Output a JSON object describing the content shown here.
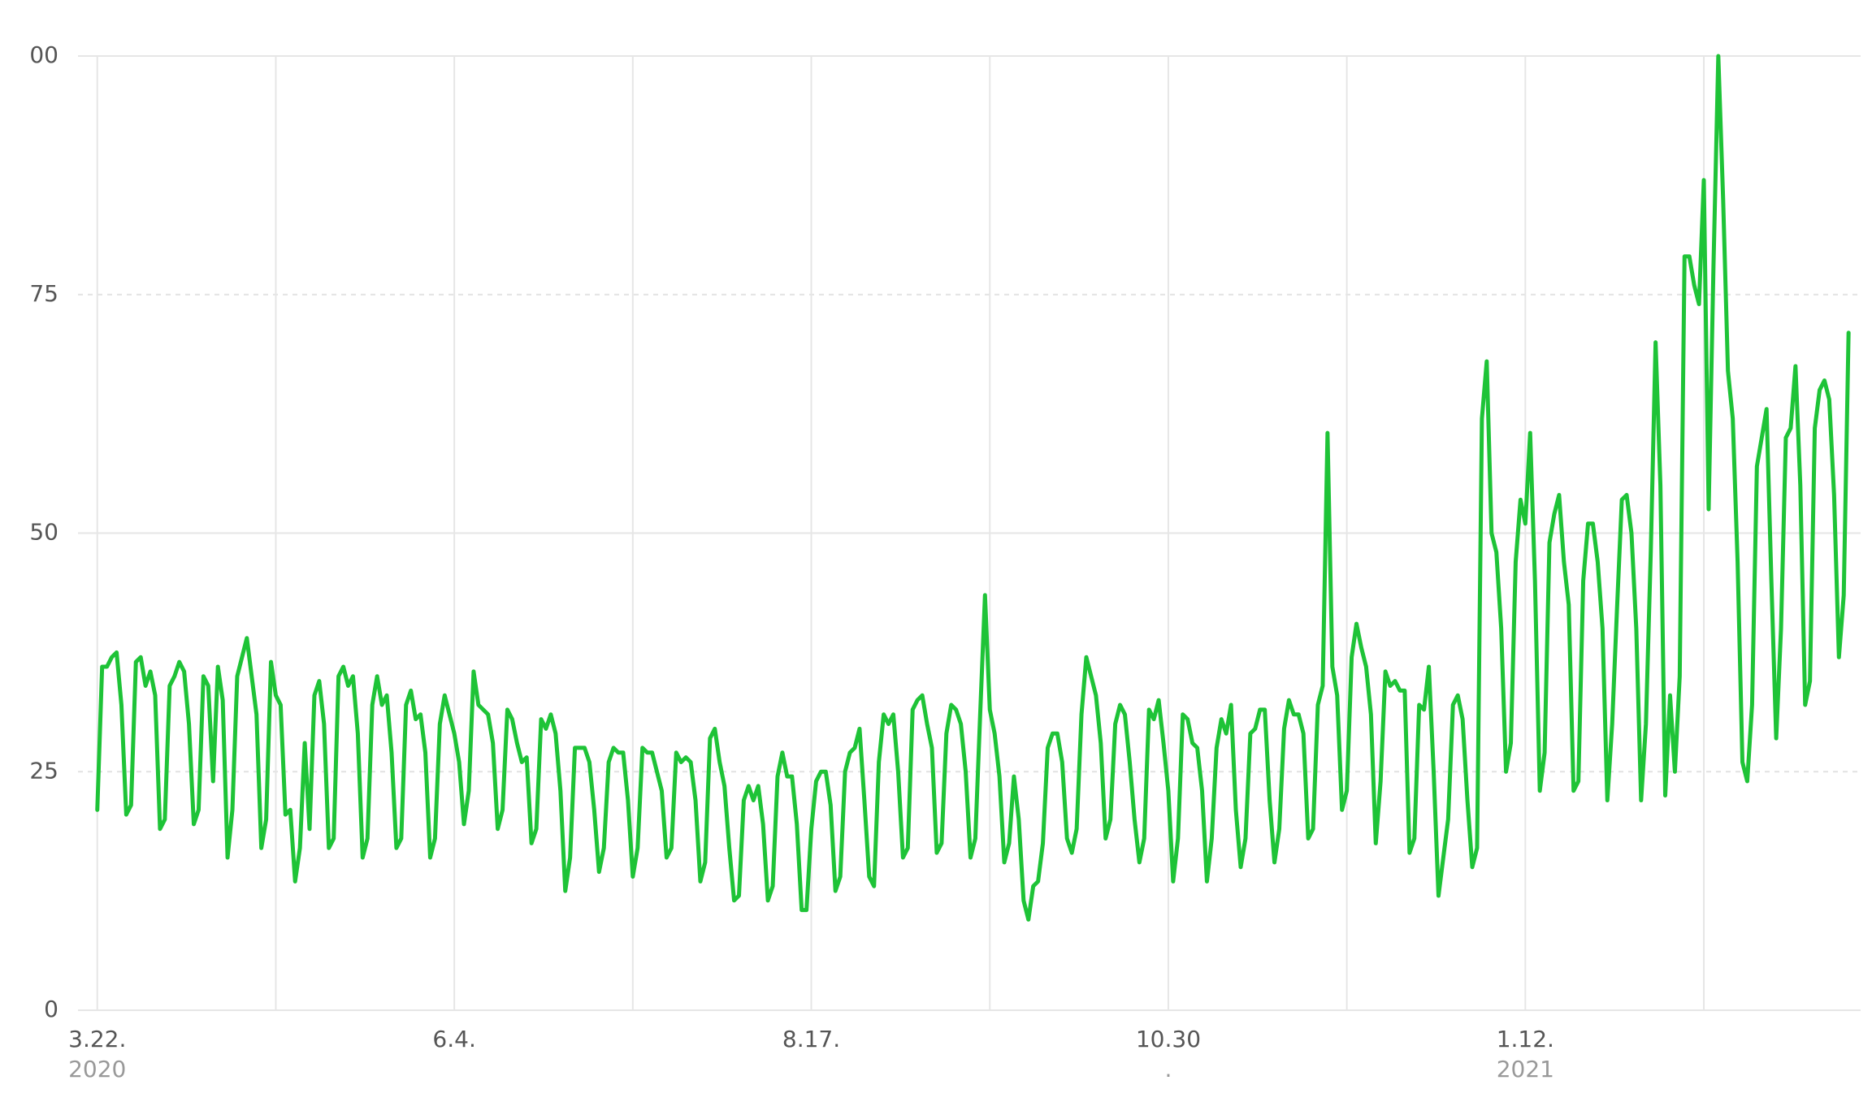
{
  "chart_data": {
    "type": "line",
    "x": [
      0,
      1,
      2,
      3,
      4,
      5,
      6,
      7,
      8,
      9,
      10,
      11,
      12,
      13,
      14,
      15,
      16,
      17,
      18,
      19,
      20,
      21,
      22,
      23,
      24,
      25,
      26,
      27,
      28,
      29,
      30,
      31,
      32,
      33,
      34,
      35,
      36,
      37,
      38,
      39,
      40,
      41,
      42,
      43,
      44,
      45,
      46,
      47,
      48,
      49,
      50,
      51,
      52,
      53,
      54,
      55,
      56,
      57,
      58,
      59,
      60,
      61,
      62,
      63,
      64,
      65,
      66,
      67,
      68,
      69,
      70,
      71,
      72,
      73,
      74,
      75,
      76,
      77,
      78,
      79,
      80,
      81,
      82,
      83,
      84,
      85,
      86,
      87,
      88,
      89,
      90,
      91,
      92,
      93,
      94,
      95,
      96,
      97,
      98,
      99,
      100,
      101,
      102,
      103,
      104,
      105,
      106,
      107,
      108,
      109,
      110,
      111,
      112,
      113,
      114,
      115,
      116,
      117,
      118,
      119,
      120,
      121,
      122,
      123,
      124,
      125,
      126,
      127,
      128,
      129,
      130,
      131,
      132,
      133,
      134,
      135,
      136,
      137,
      138,
      139,
      140,
      141,
      142,
      143,
      144,
      145,
      146,
      147,
      148,
      149,
      150,
      151,
      152,
      153,
      154,
      155,
      156,
      157,
      158,
      159,
      160,
      161,
      162,
      163,
      164,
      165,
      166,
      167,
      168,
      169,
      170,
      171,
      172,
      173,
      174,
      175,
      176,
      177,
      178,
      179,
      180,
      181,
      182,
      183,
      184,
      185,
      186,
      187,
      188,
      189,
      190,
      191,
      192,
      193,
      194,
      195,
      196,
      197,
      198,
      199,
      200,
      201,
      202,
      203,
      204,
      205,
      206,
      207,
      208,
      209,
      210,
      211,
      212,
      213,
      214,
      215,
      216,
      217,
      218,
      219,
      220,
      221,
      222,
      223,
      224,
      225,
      226,
      227,
      228,
      229,
      230,
      231,
      232,
      233,
      234,
      235,
      236,
      237,
      238,
      239,
      240,
      241,
      242,
      243,
      244,
      245,
      246,
      247,
      248,
      249,
      250,
      251,
      252,
      253,
      254,
      255,
      256,
      257,
      258,
      259,
      260,
      261,
      262,
      263,
      264,
      265,
      266,
      267,
      268,
      269,
      270,
      271,
      272,
      273,
      274,
      275,
      276,
      277,
      278,
      279,
      280,
      281,
      282,
      283,
      284,
      285,
      286,
      287,
      288,
      289,
      290,
      291,
      292,
      293,
      294,
      295,
      296,
      297,
      298,
      299,
      300,
      301,
      302,
      303,
      304,
      305,
      306,
      307,
      308,
      309,
      310,
      311,
      312,
      313,
      314,
      315,
      316,
      317,
      318,
      319,
      320,
      321,
      322,
      323,
      324,
      325,
      326,
      327,
      328,
      329,
      330,
      331,
      332,
      333,
      334,
      335,
      336,
      337,
      338,
      339,
      340,
      341,
      342,
      343,
      344,
      345,
      346,
      347,
      348,
      349,
      350,
      351,
      352,
      353,
      354,
      355,
      356,
      357,
      358,
      359,
      360,
      361,
      362,
      363
    ],
    "series": [
      {
        "color": "#1ec337",
        "values": [
          21,
          36,
          36,
          37,
          37.5,
          32,
          20.5,
          21.5,
          36.5,
          37,
          34,
          35.5,
          33,
          19,
          20,
          34,
          35,
          36.5,
          35.5,
          30,
          19.5,
          21,
          35,
          34,
          24,
          36,
          32.5,
          16,
          21,
          35,
          37,
          39,
          35,
          31,
          17,
          20,
          36.5,
          33,
          32,
          20.5,
          21,
          13.5,
          17,
          28,
          19,
          33,
          34.5,
          30,
          17,
          18,
          35,
          36,
          34,
          35,
          29,
          16,
          18,
          32,
          35,
          32,
          33,
          27,
          17,
          18,
          32,
          33.5,
          30.5,
          31,
          27,
          16,
          18,
          30,
          33,
          31,
          29,
          26,
          19.5,
          23,
          35.5,
          32,
          31.5,
          31,
          28,
          19,
          21,
          31.5,
          30.5,
          28,
          26,
          26.5,
          17.5,
          19,
          30.5,
          29.5,
          31,
          29,
          23,
          12.5,
          16,
          27.5,
          27.5,
          27.5,
          26,
          21,
          14.5,
          17,
          26,
          27.5,
          27,
          27,
          22,
          14,
          17,
          27.5,
          27,
          27,
          25,
          23,
          16,
          17,
          27,
          26,
          26.5,
          26,
          22,
          13.5,
          15.5,
          28.5,
          29.5,
          26,
          23.5,
          17,
          11.5,
          12,
          22,
          23.5,
          22,
          23.5,
          19.5,
          11.5,
          13,
          24.5,
          27,
          24.5,
          24.5,
          19.5,
          10.5,
          10.5,
          19,
          24,
          25,
          25,
          21.5,
          12.5,
          14,
          25,
          27,
          27.5,
          29.5,
          22,
          14,
          13,
          26,
          31,
          30,
          31,
          25,
          16,
          17,
          31.5,
          32.5,
          33,
          30,
          27.5,
          16.5,
          17.5,
          29,
          32,
          31.5,
          30,
          25,
          16,
          18,
          31,
          43.5,
          31.5,
          29,
          24.5,
          15.5,
          17.5,
          24.5,
          20,
          11.5,
          9.5,
          13,
          13.5,
          17.5,
          27.5,
          29,
          29,
          26,
          18,
          16.5,
          19,
          31,
          37,
          35,
          33,
          28,
          18,
          20,
          30,
          32,
          31,
          26,
          20,
          15.5,
          18,
          31.5,
          30.5,
          32.5,
          28,
          23,
          13.5,
          18,
          31,
          30.5,
          28,
          27.5,
          23,
          13.5,
          18,
          27.5,
          30.5,
          29,
          32,
          21,
          15,
          18,
          29,
          29.5,
          31.5,
          31.5,
          22,
          15.5,
          19,
          29.5,
          32.5,
          31,
          31,
          29,
          18,
          19,
          32,
          34,
          60.5,
          36,
          33,
          21,
          23,
          37,
          40.5,
          38,
          36,
          31,
          17.5,
          24,
          35.5,
          34,
          34.5,
          33.5,
          33.5,
          16.5,
          18,
          32,
          31.5,
          36,
          25,
          12,
          16,
          20,
          32,
          33,
          30.5,
          22,
          15,
          17,
          62,
          68,
          50,
          48,
          40,
          25,
          28,
          47,
          53.5,
          51,
          60.5,
          45,
          23,
          27,
          49,
          52,
          54,
          47,
          42.5,
          23,
          24,
          45,
          51,
          51,
          47,
          40,
          22,
          30,
          42,
          53.5,
          54,
          50,
          40,
          22,
          30,
          48,
          70,
          55,
          22.5,
          33,
          25,
          35,
          79,
          79,
          76,
          74,
          87,
          52.5,
          78,
          100,
          85,
          67,
          62,
          47,
          26,
          24,
          32,
          57,
          60,
          63,
          45,
          28.5,
          40,
          60,
          61,
          67.5,
          55,
          32,
          34.5,
          61,
          65,
          66,
          64,
          54,
          37,
          43.5,
          71
        ]
      }
    ],
    "xlim": [
      -4,
      365.5
    ],
    "xticks": [
      {
        "value": 0,
        "label": "3.22.",
        "sublabel": "2020"
      },
      {
        "value": 37,
        "label": null
      },
      {
        "value": 74,
        "label": "6.4."
      },
      {
        "value": 111,
        "label": null
      },
      {
        "value": 148,
        "label": "8.17."
      },
      {
        "value": 185,
        "label": null
      },
      {
        "value": 222,
        "label": "10.30",
        "sublabel": "."
      },
      {
        "value": 259,
        "label": null
      },
      {
        "value": 296,
        "label": "1.12.",
        "sublabel": "2021"
      },
      {
        "value": 333,
        "label": null
      }
    ],
    "ylim": [
      0,
      100
    ],
    "yticks": [
      0,
      25,
      50,
      75,
      {
        "value": 100,
        "label": "00"
      }
    ],
    "grid": true
  }
}
